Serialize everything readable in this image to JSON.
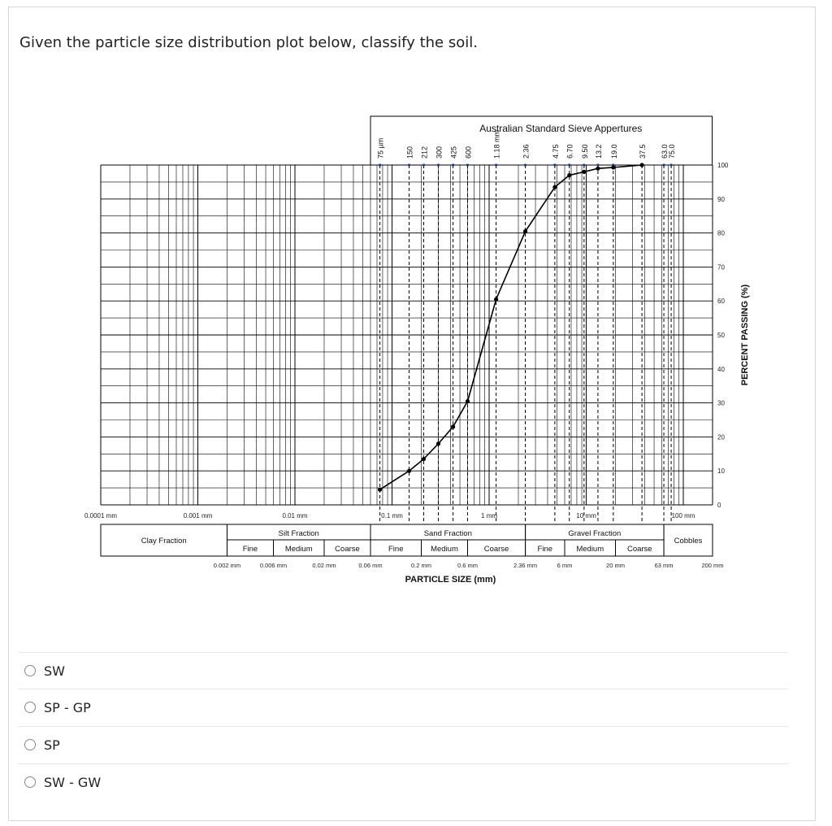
{
  "question": "Given the particle size distribution plot below, classify the soil.",
  "options": [
    "SW",
    "SP - GP",
    "SP",
    "SW - GW"
  ],
  "chart_data": {
    "type": "line",
    "title": "Australian Standard Sieve Appertures",
    "xlabel": "PARTICLE  SIZE  (mm)",
    "ylabel": "PERCENT PASSING (%)",
    "xscale": "log",
    "xlim": [
      0.0001,
      200
    ],
    "ylim": [
      0,
      100
    ],
    "grid": true,
    "yticks": [
      "0",
      "10",
      "20",
      "30",
      "40",
      "50",
      "60",
      "70",
      "80",
      "90",
      "100"
    ],
    "decade_labels": [
      {
        "x": 0.0001,
        "label": "0.0001 mm"
      },
      {
        "x": 0.001,
        "label": "0.001 mm"
      },
      {
        "x": 0.01,
        "label": "0.01 mm"
      },
      {
        "x": 0.1,
        "label": "0.1 mm"
      },
      {
        "x": 1,
        "label": "1 mm"
      },
      {
        "x": 10,
        "label": "10 mm"
      },
      {
        "x": 100,
        "label": "100 mm"
      }
    ],
    "sieves": [
      {
        "x": 0.075,
        "label": "75 µm"
      },
      {
        "x": 0.15,
        "label": "150"
      },
      {
        "x": 0.212,
        "label": "212"
      },
      {
        "x": 0.3,
        "label": "300"
      },
      {
        "x": 0.425,
        "label": "425"
      },
      {
        "x": 0.6,
        "label": "600"
      },
      {
        "x": 1.18,
        "label": "1.18 mm"
      },
      {
        "x": 2.36,
        "label": "2.36"
      },
      {
        "x": 4.75,
        "label": "4.75"
      },
      {
        "x": 6.7,
        "label": "6.70"
      },
      {
        "x": 9.5,
        "label": "9.50"
      },
      {
        "x": 13.2,
        "label": "13.2"
      },
      {
        "x": 19.0,
        "label": "19.0"
      },
      {
        "x": 37.5,
        "label": "37.5"
      },
      {
        "x": 63.0,
        "label": "63.0"
      },
      {
        "x": 75.0,
        "label": "75.0"
      }
    ],
    "series": [
      {
        "x": [
          0.075,
          0.15,
          0.212,
          0.3,
          0.425,
          0.6,
          1.18,
          2.36,
          4.75,
          6.7,
          9.5,
          13.2,
          19.0,
          37.5
        ],
        "y": [
          4.5,
          10,
          13.5,
          18,
          23,
          30.5,
          60.5,
          80.5,
          93.5,
          97,
          98,
          99,
          99.3,
          100
        ]
      }
    ],
    "fractions": [
      {
        "name": "Clay Fraction",
        "x0": 0.0001,
        "x1": 0.002,
        "subs": []
      },
      {
        "name": "Silt Fraction",
        "x0": 0.002,
        "x1": 0.06,
        "subs": [
          "Fine",
          "Medium",
          "Coarse"
        ],
        "cuts": [
          0.006,
          0.02
        ]
      },
      {
        "name": "Sand Fraction",
        "x0": 0.06,
        "x1": 2.36,
        "subs": [
          "Fine",
          "Medium",
          "Coarse"
        ],
        "cuts": [
          0.2,
          0.6
        ]
      },
      {
        "name": "Gravel Fraction",
        "x0": 2.36,
        "x1": 63,
        "subs": [
          "Fine",
          "Medium",
          "Coarse"
        ],
        "cuts": [
          6,
          20
        ]
      },
      {
        "name": "Cobbles",
        "x0": 63,
        "x1": 200,
        "subs": []
      }
    ],
    "boundary_labels": [
      {
        "x": 0.002,
        "label": "0.002 mm"
      },
      {
        "x": 0.006,
        "label": "0.006 mm"
      },
      {
        "x": 0.02,
        "label": "0.02 mm"
      },
      {
        "x": 0.06,
        "label": "0.06 mm"
      },
      {
        "x": 0.2,
        "label": "0.2 mm"
      },
      {
        "x": 0.6,
        "label": "0.6 mm"
      },
      {
        "x": 2.36,
        "label": "2.36 mm"
      },
      {
        "x": 6,
        "label": "6 mm"
      },
      {
        "x": 20,
        "label": "20 mm"
      },
      {
        "x": 63,
        "label": "63 mm"
      },
      {
        "x": 200,
        "label": "200 mm"
      }
    ],
    "colors": {
      "line": "#000000",
      "grid": "#000000"
    }
  }
}
